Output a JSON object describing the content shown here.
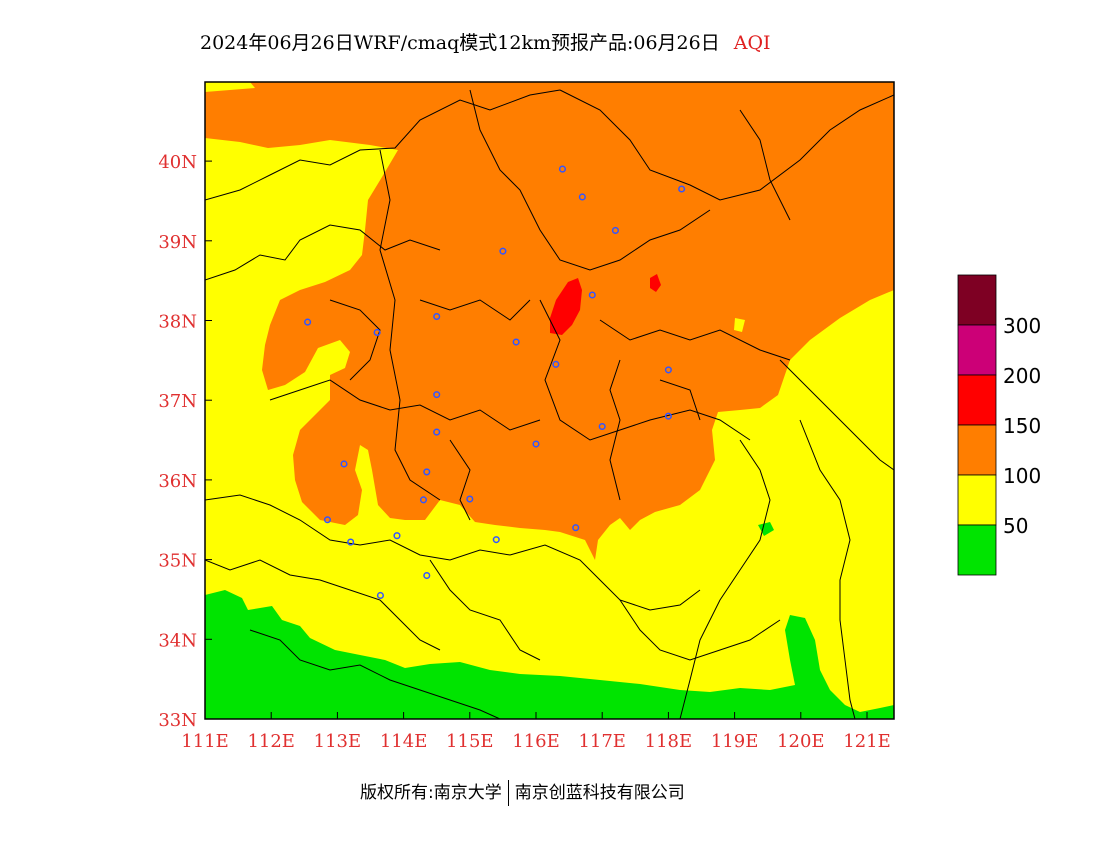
{
  "title": {
    "main": "2024年06月26日WRF/cmaq模式12km预报产品:06月26日",
    "variable": "AQI"
  },
  "colors": {
    "green": "#00e400",
    "yellow": "#ffff00",
    "orange": "#ff7e00",
    "red": "#ff0000",
    "purple": "#cc0077",
    "maroon": "#7e0023",
    "boundary": "#000000",
    "city_marker": "#3355ff",
    "tick_label": "#e03030"
  },
  "axes": {
    "x_ticks": [
      "111E",
      "112E",
      "113E",
      "114E",
      "115E",
      "116E",
      "117E",
      "118E",
      "119E",
      "120E",
      "121E"
    ],
    "y_ticks": [
      "40N",
      "39N",
      "38N",
      "37N",
      "36N",
      "35N",
      "34N",
      "33N"
    ]
  },
  "legend": {
    "labels": [
      "300",
      "200",
      "150",
      "100",
      "50"
    ]
  },
  "cities": [
    {
      "lon": 116.4,
      "lat": 39.9
    },
    {
      "lon": 116.7,
      "lat": 39.55
    },
    {
      "lon": 117.2,
      "lat": 39.13
    },
    {
      "lon": 118.2,
      "lat": 39.65
    },
    {
      "lon": 115.5,
      "lat": 38.87
    },
    {
      "lon": 116.85,
      "lat": 38.32
    },
    {
      "lon": 112.55,
      "lat": 37.98
    },
    {
      "lon": 113.6,
      "lat": 37.85
    },
    {
      "lon": 114.5,
      "lat": 38.05
    },
    {
      "lon": 115.7,
      "lat": 37.73
    },
    {
      "lon": 116.3,
      "lat": 37.45
    },
    {
      "lon": 118.0,
      "lat": 37.38
    },
    {
      "lon": 114.5,
      "lat": 37.07
    },
    {
      "lon": 117.0,
      "lat": 36.67
    },
    {
      "lon": 118.0,
      "lat": 36.8
    },
    {
      "lon": 114.5,
      "lat": 36.6
    },
    {
      "lon": 116.0,
      "lat": 36.45
    },
    {
      "lon": 113.1,
      "lat": 36.2
    },
    {
      "lon": 114.35,
      "lat": 36.1
    },
    {
      "lon": 114.3,
      "lat": 35.75
    },
    {
      "lon": 115.0,
      "lat": 35.76
    },
    {
      "lon": 112.85,
      "lat": 35.5
    },
    {
      "lon": 113.9,
      "lat": 35.3
    },
    {
      "lon": 113.2,
      "lat": 35.22
    },
    {
      "lon": 115.4,
      "lat": 35.25
    },
    {
      "lon": 116.6,
      "lat": 35.4
    },
    {
      "lon": 114.35,
      "lat": 34.8
    },
    {
      "lon": 113.65,
      "lat": 34.55
    }
  ],
  "copyright": {
    "owner": "版权所有:南京大学",
    "company": "南京创蓝科技有限公司"
  }
}
